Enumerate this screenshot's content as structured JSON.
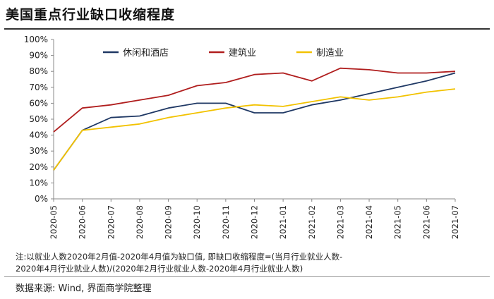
{
  "title": "美国重点行业缺口收缩程度",
  "note_line1": "注:以就业人数2020年2月值-2020年4月值为缺口值, 即缺口收缩程度=(当月行业就业人数-",
  "note_line2": "2020年4月行业就业人数)/(2020年2月行业就业人数-2020年4月行业就业人数)",
  "source": "数据来源: Wind, 界面商学院整理",
  "chart_data": {
    "type": "line",
    "title": "美国重点行业缺口收缩程度",
    "xlabel": "",
    "ylabel": "",
    "ylim": [
      0,
      100
    ],
    "y_ticks": [
      "0%",
      "10%",
      "20%",
      "30%",
      "40%",
      "50%",
      "60%",
      "70%",
      "80%",
      "90%",
      "100%"
    ],
    "legend_position": "top",
    "grid": false,
    "categories": [
      "2020-05",
      "2020-06",
      "2020-07",
      "2020-08",
      "2020-09",
      "2020-10",
      "2020-11",
      "2020-12",
      "2021-01",
      "2021-02",
      "2021-03",
      "2021-04",
      "2021-05",
      "2021-06",
      "2021-07"
    ],
    "series": [
      {
        "name": "休闲和酒店",
        "color": "#1f3864",
        "values": [
          18,
          43,
          51,
          52,
          57,
          60,
          60,
          54,
          54,
          59,
          62,
          66,
          70,
          74,
          79
        ]
      },
      {
        "name": "建筑业",
        "color": "#b01e1e",
        "values": [
          42,
          57,
          59,
          62,
          65,
          71,
          73,
          78,
          79,
          74,
          82,
          81,
          79,
          79,
          80
        ]
      },
      {
        "name": "制造业",
        "color": "#f2c200",
        "values": [
          18,
          43,
          45,
          47,
          51,
          54,
          57,
          59,
          58,
          61,
          64,
          62,
          64,
          67,
          69
        ]
      }
    ]
  }
}
